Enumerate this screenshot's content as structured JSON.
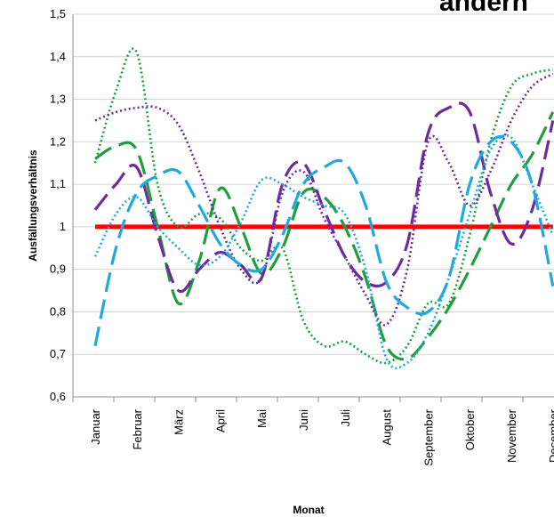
{
  "chart_data": {
    "type": "line",
    "title": "andern",
    "xlabel": "Monat",
    "ylabel": "Ausfällungsverhältnis",
    "categories": [
      "Januar",
      "Februar",
      "März",
      "April",
      "Mai",
      "Juni",
      "Juli",
      "August",
      "September",
      "Oktober",
      "November",
      "December"
    ],
    "yticks": [
      "0,6",
      "0,7",
      "0,8",
      "0,9",
      "1",
      "1,1",
      "1,2",
      "1,3",
      "1,4",
      "1,5"
    ],
    "ylim": [
      0.6,
      1.5
    ],
    "grid": true,
    "legend": "none",
    "series": [
      {
        "style": "solid",
        "color": "#ff0000",
        "x": [
          0,
          11
        ],
        "values": [
          1.0,
          1.0
        ]
      },
      {
        "style": "dash",
        "color": "#1f9e3c",
        "x": [
          0,
          0.5,
          1,
          1.5,
          2,
          2.5,
          3,
          3.5,
          4,
          4.5,
          5,
          5.5,
          6,
          6.5,
          7,
          7.5,
          8,
          8.5,
          9,
          9.5,
          10,
          10.5,
          11
        ],
        "values": [
          1.16,
          1.19,
          1.18,
          1.0,
          0.82,
          0.92,
          1.09,
          1.0,
          0.89,
          0.95,
          1.08,
          1.07,
          1.0,
          0.88,
          0.72,
          0.69,
          0.74,
          0.81,
          0.9,
          1.0,
          1.1,
          1.17,
          1.27
        ]
      },
      {
        "style": "dot",
        "color": "#1f9e3c",
        "x": [
          0,
          0.5,
          1,
          1.5,
          2,
          2.5,
          3,
          3.5,
          4,
          4.5,
          5,
          5.5,
          6,
          6.5,
          7,
          7.5,
          8,
          8.5,
          9,
          9.5,
          10,
          10.5,
          11
        ],
        "values": [
          1.15,
          1.32,
          1.41,
          1.1,
          1.0,
          1.03,
          1.02,
          0.95,
          0.92,
          0.95,
          0.78,
          0.72,
          0.73,
          0.7,
          0.68,
          0.72,
          0.82,
          0.82,
          0.98,
          1.2,
          1.33,
          1.36,
          1.37
        ]
      },
      {
        "style": "dash",
        "color": "#6a2c9e",
        "x": [
          0,
          0.5,
          1,
          1.5,
          2,
          2.5,
          3,
          3.5,
          4,
          4.5,
          5,
          5.5,
          6,
          6.5,
          7,
          7.5,
          8,
          8.5,
          9,
          9.5,
          10,
          10.5,
          11
        ],
        "values": [
          1.04,
          1.1,
          1.14,
          0.98,
          0.85,
          0.9,
          0.94,
          0.91,
          0.88,
          1.1,
          1.15,
          1.04,
          0.93,
          0.87,
          0.87,
          0.96,
          1.22,
          1.28,
          1.27,
          1.08,
          0.96,
          1.04,
          1.25
        ]
      },
      {
        "style": "dot",
        "color": "#6a2c9e",
        "x": [
          0,
          0.5,
          1,
          1.5,
          2,
          2.5,
          3,
          3.5,
          4,
          4.5,
          5,
          5.5,
          6,
          6.5,
          7,
          7.5,
          8,
          8.5,
          9,
          9.5,
          10,
          10.5,
          11
        ],
        "values": [
          1.25,
          1.27,
          1.28,
          1.28,
          1.24,
          1.13,
          1.0,
          0.9,
          0.88,
          1.08,
          1.13,
          1.02,
          0.93,
          0.84,
          0.77,
          0.9,
          1.2,
          1.15,
          1.05,
          1.13,
          1.25,
          1.33,
          1.36
        ]
      },
      {
        "style": "dash",
        "color": "#1fa9e0",
        "x": [
          0,
          0.5,
          1,
          1.5,
          2,
          2.5,
          3,
          3.5,
          4,
          4.5,
          5,
          5.5,
          6,
          6.5,
          7,
          7.5,
          8,
          8.5,
          9,
          9.5,
          10,
          10.5,
          11
        ],
        "values": [
          0.72,
          0.95,
          1.08,
          1.12,
          1.13,
          1.05,
          0.96,
          0.91,
          0.9,
          0.98,
          1.1,
          1.14,
          1.15,
          1.05,
          0.87,
          0.81,
          0.8,
          0.88,
          1.1,
          1.2,
          1.2,
          1.1,
          0.86
        ]
      },
      {
        "style": "dot",
        "color": "#1fa9e0",
        "x": [
          0,
          0.5,
          1,
          1.5,
          2,
          2.5,
          3,
          3.5,
          4,
          4.5,
          5,
          5.5,
          6,
          6.5,
          7,
          7.5,
          8,
          8.5,
          9,
          9.5,
          10,
          10.5,
          11
        ],
        "values": [
          0.93,
          1.03,
          1.07,
          1.0,
          0.95,
          0.91,
          0.93,
          1.01,
          1.11,
          1.1,
          1.07,
          1.05,
          1.03,
          0.9,
          0.69,
          0.68,
          0.75,
          0.88,
          1.03,
          1.18,
          1.21,
          1.1,
          0.98
        ]
      }
    ]
  }
}
